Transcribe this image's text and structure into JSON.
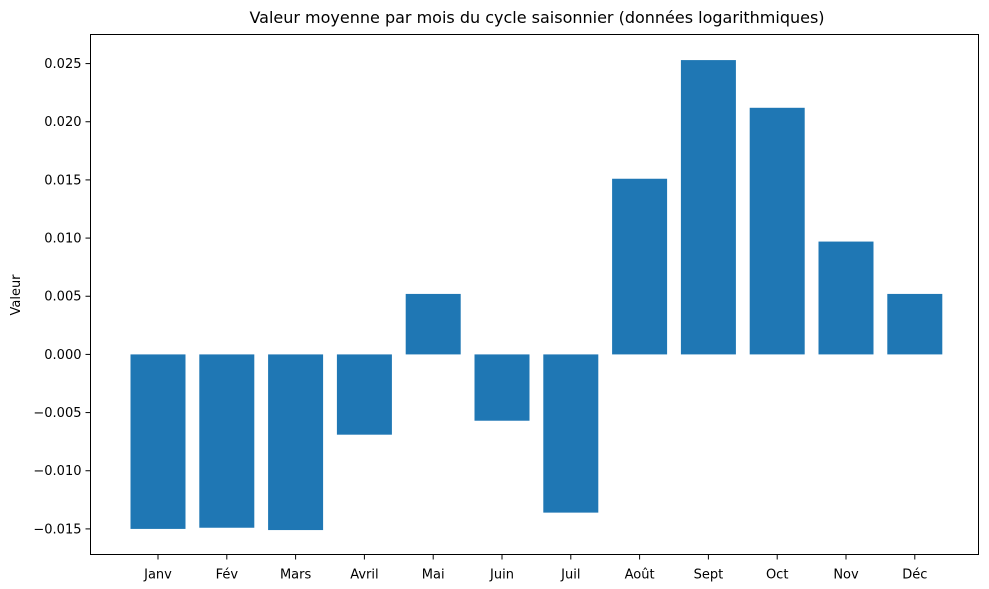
{
  "chart_data": {
    "type": "bar",
    "title": "Valeur moyenne par mois du cycle saisonnier (données logarithmiques)",
    "xlabel": "",
    "ylabel": "Valeur",
    "categories": [
      "Janv",
      "Fév",
      "Mars",
      "Avril",
      "Mai",
      "Juin",
      "Juil",
      "Août",
      "Sept",
      "Oct",
      "Nov",
      "Déc"
    ],
    "values": [
      -0.015,
      -0.0149,
      -0.0151,
      -0.0069,
      0.0052,
      -0.0057,
      -0.0136,
      0.0151,
      0.0253,
      0.0212,
      0.0097,
      0.0052
    ],
    "ylim": [
      -0.0172,
      0.0275
    ],
    "yticks": [
      -0.015,
      -0.01,
      -0.005,
      0.0,
      0.005,
      0.01,
      0.015,
      0.02,
      0.025
    ],
    "ytick_labels": [
      "−0.015",
      "−0.010",
      "−0.005",
      "0.000",
      "0.005",
      "0.010",
      "0.015",
      "0.020",
      "0.025"
    ],
    "bar_color": "#1f77b4",
    "grid": false,
    "legend": "none"
  }
}
